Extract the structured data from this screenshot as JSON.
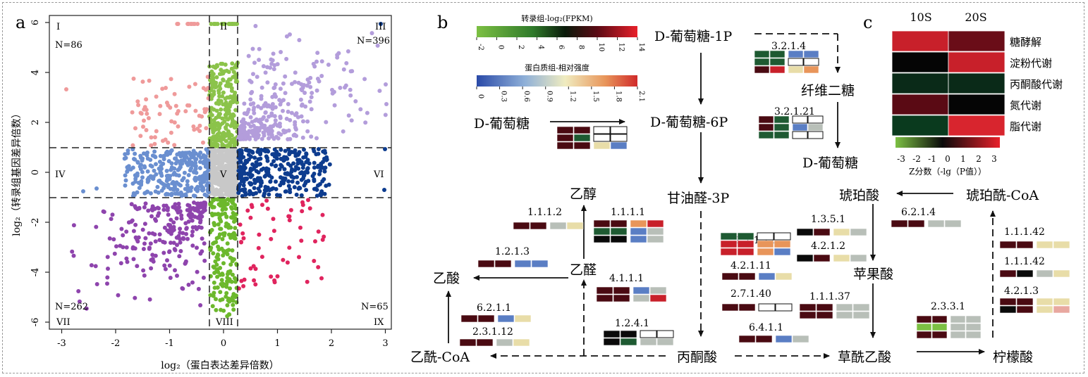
{
  "colors": {
    "q1": "#ef9a9a",
    "q2": "#8bc34a",
    "q3": "#b39ddb",
    "q4": "#6a8fd0",
    "q5": "#c8c8c8",
    "q6": "#0d3c8f",
    "q7": "#8e44ad",
    "q8": "#6cb82c",
    "q9": "#e0245e",
    "dark": "#4a0a12",
    "red": "#c8202a",
    "green": "#1e5a32",
    "lightgreen": "#7cc043",
    "black": "#0a0a0a",
    "blue": "#5a7ec4",
    "beige": "#e8dda8",
    "grey": "#b8bfb8",
    "white": "#ffffff",
    "orange": "#e8955a",
    "pink": "#e8a8a0"
  },
  "panel_a": {
    "label": "a",
    "xlabel": "log₂（蛋白表达差异倍数）",
    "ylabel": "log₂（转录组基因差异倍数）",
    "xticks": [
      "-3",
      "-2",
      "-1",
      "0",
      "1",
      "2",
      "3"
    ],
    "yticks": [
      "6",
      "4",
      "2",
      "0",
      "-2",
      "-4",
      "-6"
    ],
    "regions": {
      "r1": "I",
      "r2": "II",
      "r3": "III",
      "r4": "IV",
      "r5": "V",
      "r6": "VI",
      "r7": "VII",
      "r8": "VIII",
      "r9": "IX"
    },
    "counts": {
      "n1": "N=86",
      "n3": "N=396",
      "n7": "N=262",
      "n9": "N=65"
    }
  },
  "panel_b": {
    "label": "b",
    "legend1_title": "转录组-log₂(FPKM)",
    "legend1_ticks": [
      "-2",
      "0",
      "2",
      "4",
      "6",
      "8",
      "10",
      "12",
      "14"
    ],
    "legend2_title": "蛋白质组-相对强度",
    "legend2_ticks": [
      "0",
      "0.3",
      "0.6",
      "0.9",
      "1.2",
      "1.5",
      "1.8",
      "2.1"
    ],
    "nodes": {
      "glucose_left": "D-葡萄糖",
      "g1p": "D-葡萄糖-1P",
      "cellobiose": "纤维二糖",
      "g6p": "D-葡萄糖-6P",
      "glucose_right": "D-葡萄糖",
      "g3p": "甘油醛-3P",
      "ethanol": "乙醇",
      "acetaldehyde": "乙醛",
      "acetate": "乙酸",
      "acetylcoa": "乙酰-CoA",
      "pyruvate": "丙酮酸",
      "succinate": "琥珀酸",
      "succinylcoa": "琥珀酰-CoA",
      "malate": "苹果酸",
      "oxaloacetate": "草酰乙酸",
      "citrate": "柠檬酸"
    },
    "enzymes": {
      "e3214": "3.2.1.4",
      "e32121": "3.2.1.21",
      "e1112": "1.1.1.2",
      "e1111": "1.1.1.1",
      "e1213": "1.2.1.3",
      "e4111": "4.1.1.1",
      "e6211": "6.2.1.1",
      "e23112": "2.3.1.12",
      "e1241": "1.2.4.1",
      "e12112": "1.2.1.12",
      "e42111": "4.2.1.11",
      "e27140": "2.7.1.40",
      "e6411": "6.4.1.1",
      "e1351": "1.3.5.1",
      "e4212": "4.2.1.2",
      "e11137": "1.1.1.37",
      "e6214": "6.2.1.4",
      "e11142a": "1.1.1.42",
      "e11142b": "1.1.1.42",
      "e4213": "4.2.1.3",
      "e2331": "2.3.3.1"
    }
  },
  "panel_c": {
    "label": "c",
    "col1": "10S",
    "col2": "20S",
    "rows": [
      {
        "name": "糖酵解",
        "c1": "#c8202a",
        "c2": "#6a0d18"
      },
      {
        "name": "淀粉代谢",
        "c1": "#050505",
        "c2": "#c8202a"
      },
      {
        "name": "丙酮酸代谢",
        "c1": "#0a2a18",
        "c2": "#0a2a18"
      },
      {
        "name": "氮代谢",
        "c1": "#5a0a14",
        "c2": "#050505"
      },
      {
        "name": "脂代谢",
        "c1": "#0a3a1e",
        "c2": "#d8252e"
      }
    ],
    "scale_ticks": [
      "-3",
      "-2",
      "-1",
      "0",
      "1",
      "2",
      "3"
    ],
    "scale_label": "Z分数（-lg（P值））"
  }
}
